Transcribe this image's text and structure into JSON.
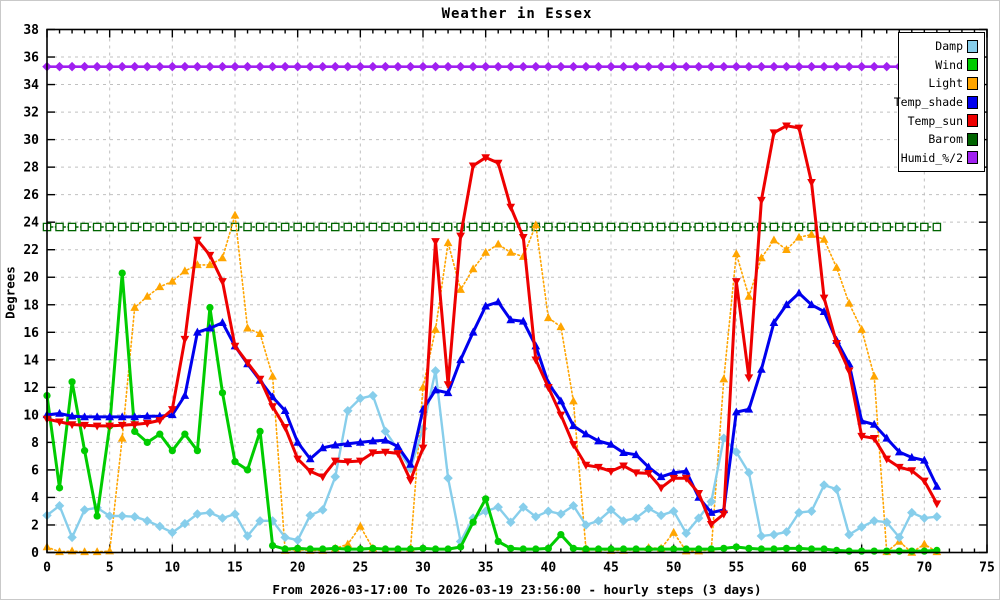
{
  "labels": {
    "title": "Weather in Essex",
    "x_caption": "From 2026-03-17:00 To 2026-03-19 23:56:00 - hourly steps (3 days)",
    "y_caption": "Degrees"
  },
  "colors": {
    "damp": "#87CEEB",
    "wind": "#00CC00",
    "light": "#FFA500",
    "temp_shade": "#0000EE",
    "temp_sun": "#EE0000",
    "barom": "#006400",
    "humid": "#A020F0",
    "grid": "#C0C0C0",
    "border": "#000000"
  },
  "legend": {
    "items": [
      {
        "label": "Damp",
        "series": "damp"
      },
      {
        "label": "Wind",
        "series": "wind"
      },
      {
        "label": "Light",
        "series": "light"
      },
      {
        "label": "Temp_shade",
        "series": "temp_shade"
      },
      {
        "label": "Temp_sun",
        "series": "temp_sun"
      },
      {
        "label": "Barom",
        "series": "barom"
      },
      {
        "label": "Humid_%/2",
        "series": "humid"
      }
    ]
  },
  "chart_data": {
    "type": "line",
    "title": "Weather in Essex",
    "xlabel": "From 2026-03-17:00 To 2026-03-19 23:56:00 - hourly steps (3 days)",
    "ylabel": "Degrees",
    "xlim": [
      0,
      75
    ],
    "ylim": [
      0,
      38
    ],
    "x_major_tick": 5,
    "x_minor_tick": 1,
    "y_major_tick": 2,
    "grid": true,
    "legend_position": "top-right",
    "x_start": 0,
    "x_step": 1,
    "n_points": 72,
    "series": [
      {
        "name": "Damp",
        "key": "damp",
        "marker": "diamond",
        "line": "solid",
        "width": 2.4,
        "values": [
          2.7,
          3.4,
          1.1,
          3.1,
          3.25,
          2.65,
          2.65,
          2.6,
          2.3,
          1.9,
          1.45,
          2.1,
          2.8,
          2.9,
          2.5,
          2.8,
          1.2,
          2.3,
          2.3,
          1.1,
          0.9,
          2.7,
          3.1,
          5.5,
          10.3,
          11.2,
          11.4,
          8.8,
          7.5,
          6.1,
          9.0,
          13.2,
          5.4,
          0.8,
          2.5,
          3.0,
          3.3,
          2.2,
          3.3,
          2.6,
          3.0,
          2.8,
          3.4,
          2.0,
          2.3,
          3.1,
          2.3,
          2.5,
          3.2,
          2.7,
          3.0,
          1.4,
          2.5,
          3.7,
          8.3,
          7.3,
          5.8,
          1.2,
          1.3,
          1.5,
          2.9,
          3.0,
          4.9,
          4.6,
          1.3,
          1.85,
          2.3,
          2.2,
          1.1,
          2.9,
          2.5,
          2.6
        ]
      },
      {
        "name": "Wind",
        "key": "wind",
        "marker": "circle",
        "line": "solid",
        "width": 3,
        "values": [
          11.4,
          4.7,
          12.4,
          7.4,
          2.65,
          9.2,
          20.3,
          8.8,
          8.0,
          8.6,
          7.4,
          8.6,
          7.4,
          17.8,
          11.6,
          6.6,
          6.0,
          8.8,
          0.5,
          0.25,
          0.3,
          0.25,
          0.25,
          0.3,
          0.25,
          0.25,
          0.3,
          0.25,
          0.25,
          0.25,
          0.3,
          0.25,
          0.25,
          0.4,
          2.2,
          3.9,
          0.8,
          0.3,
          0.25,
          0.25,
          0.3,
          1.3,
          0.3,
          0.25,
          0.25,
          0.25,
          0.25,
          0.25,
          0.25,
          0.25,
          0.25,
          0.25,
          0.25,
          0.25,
          0.3,
          0.4,
          0.3,
          0.25,
          0.25,
          0.3,
          0.3,
          0.25,
          0.25,
          0.15,
          0.1,
          0.1,
          0.1,
          0.1,
          0.1,
          0.1,
          0.1,
          0.15
        ]
      },
      {
        "name": "Light",
        "key": "light",
        "marker": "triangle-up",
        "line": "dotted",
        "width": 1.6,
        "values": [
          0.4,
          0.05,
          0.1,
          0.05,
          0.05,
          0.1,
          8.3,
          17.8,
          18.6,
          19.3,
          19.7,
          20.45,
          20.9,
          20.9,
          21.4,
          24.5,
          16.3,
          15.9,
          12.8,
          0.15,
          0.2,
          0.15,
          0.15,
          0.3,
          0.6,
          1.9,
          0.3,
          0.2,
          0.2,
          0.3,
          12.0,
          16.2,
          22.5,
          19.1,
          20.6,
          21.8,
          22.4,
          21.8,
          21.5,
          23.8,
          17.05,
          16.4,
          11.0,
          0.3,
          0.2,
          0.15,
          0.15,
          0.2,
          0.35,
          0.3,
          1.45,
          0.1,
          0.1,
          0.2,
          12.6,
          21.7,
          18.6,
          21.4,
          22.7,
          22.0,
          22.9,
          23.1,
          22.75,
          20.7,
          18.1,
          16.2,
          12.8,
          0.05,
          0.8,
          0.0,
          0.6,
          0.05
        ]
      },
      {
        "name": "Temp_shade",
        "key": "temp_shade",
        "marker": "triangle-up",
        "line": "solid",
        "width": 3,
        "values": [
          10.0,
          10.1,
          9.9,
          9.85,
          9.85,
          9.85,
          9.85,
          9.85,
          9.9,
          9.9,
          10.0,
          11.4,
          16.0,
          16.3,
          16.7,
          15.0,
          13.7,
          12.5,
          11.3,
          10.3,
          8.0,
          6.8,
          7.6,
          7.8,
          7.9,
          8.0,
          8.1,
          8.15,
          7.7,
          6.4,
          10.4,
          11.8,
          11.6,
          14.0,
          16.0,
          17.9,
          18.2,
          16.9,
          16.8,
          15.0,
          12.3,
          11.0,
          9.2,
          8.6,
          8.1,
          7.85,
          7.25,
          7.1,
          6.2,
          5.5,
          5.8,
          5.9,
          4.0,
          2.9,
          3.1,
          10.2,
          10.4,
          13.3,
          16.7,
          18.0,
          18.85,
          18.0,
          17.5,
          15.4,
          13.7,
          9.55,
          9.3,
          8.3,
          7.3,
          6.9,
          6.7,
          4.8
        ]
      },
      {
        "name": "Temp_sun",
        "key": "temp_sun",
        "marker": "triangle-down",
        "line": "solid",
        "width": 3,
        "values": [
          9.7,
          9.5,
          9.3,
          9.25,
          9.2,
          9.2,
          9.25,
          9.3,
          9.4,
          9.6,
          10.4,
          15.5,
          22.7,
          21.6,
          19.7,
          15.0,
          13.8,
          12.6,
          10.6,
          9.1,
          6.8,
          5.9,
          5.5,
          6.65,
          6.6,
          6.65,
          7.25,
          7.3,
          7.2,
          5.25,
          7.6,
          22.6,
          12.2,
          23.0,
          28.1,
          28.7,
          28.3,
          25.1,
          22.9,
          14.0,
          12.0,
          10.0,
          7.85,
          6.35,
          6.2,
          5.9,
          6.3,
          5.8,
          5.75,
          4.7,
          5.4,
          5.4,
          4.3,
          2.05,
          2.8,
          19.7,
          12.7,
          25.6,
          30.5,
          31.0,
          30.85,
          26.9,
          18.5,
          15.2,
          13.2,
          8.45,
          8.3,
          6.8,
          6.2,
          5.95,
          5.2,
          3.55
        ]
      },
      {
        "name": "Barom",
        "key": "barom",
        "marker": "square-open",
        "line": "dotted",
        "width": 1.4,
        "constant": 23.65
      },
      {
        "name": "Humid_%/2",
        "key": "humid",
        "marker": "diamond",
        "line": "solid",
        "width": 2.6,
        "constant": 35.3
      }
    ]
  },
  "axes": {
    "y_tick_labels": [
      "0",
      "2",
      "4",
      "6",
      "8",
      "10",
      "12",
      "14",
      "16",
      "18",
      "20",
      "22",
      "24",
      "26",
      "28",
      "30",
      "32",
      "34",
      "36",
      "38"
    ],
    "x_tick_labels": [
      "0",
      "5",
      "10",
      "15",
      "20",
      "25",
      "30",
      "35",
      "40",
      "45",
      "50",
      "55",
      "60",
      "65",
      "70",
      "75"
    ]
  }
}
